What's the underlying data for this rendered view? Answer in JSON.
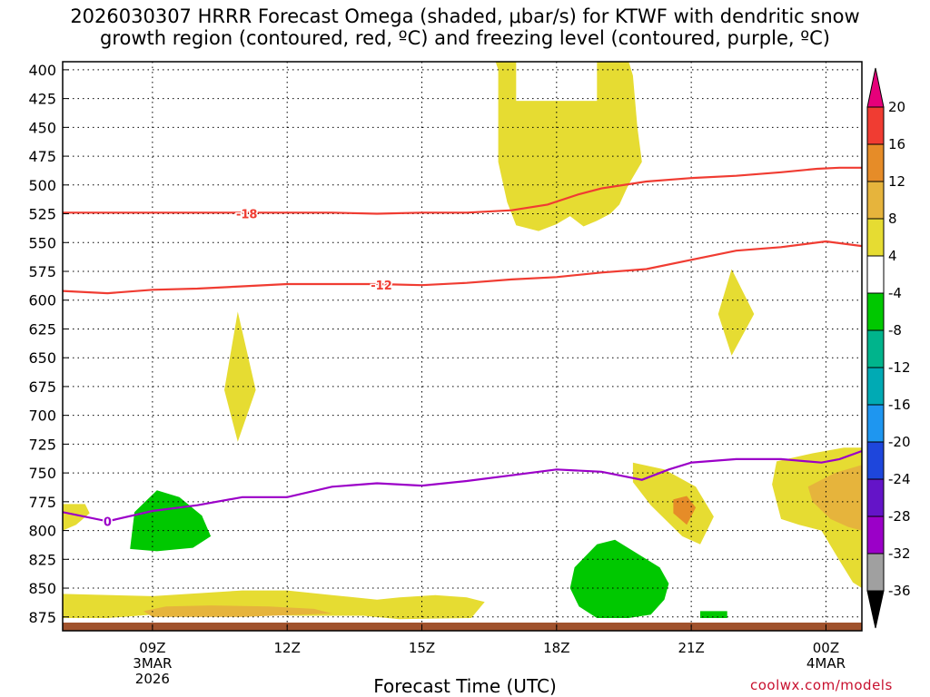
{
  "title_line1": "2026030307 HRRR Forecast Omega (shaded, μbar/s) for KTWF with dendritic snow",
  "title_line2": "growth region (contoured, red, ºC) and freezing level (contoured, purple, ºC)",
  "credit": "coolwx.com/models",
  "colors": {
    "yellow": "#e6dc32",
    "dark_yellow": "#e6b43c",
    "orange": "#e68c28",
    "green": "#00c800",
    "red_contour": "#f03c32",
    "purple_contour": "#9b00c8",
    "ground": "#a0522d"
  },
  "chart_data": {
    "type": "heatmap",
    "xlabel": "Forecast Time (UTC)",
    "xlim": [
      7,
      24.8
    ],
    "ylim": [
      393,
      887
    ],
    "x_ticks": [
      {
        "x": 9,
        "label": "09Z",
        "sub1": "3MAR",
        "sub2": "2026"
      },
      {
        "x": 12,
        "label": "12Z",
        "sub1": "",
        "sub2": ""
      },
      {
        "x": 15,
        "label": "15Z",
        "sub1": "",
        "sub2": ""
      },
      {
        "x": 18,
        "label": "18Z",
        "sub1": "",
        "sub2": ""
      },
      {
        "x": 21,
        "label": "21Z",
        "sub1": "",
        "sub2": ""
      },
      {
        "x": 24,
        "label": "00Z",
        "sub1": "4MAR",
        "sub2": ""
      }
    ],
    "y_ticks": [
      400,
      425,
      450,
      475,
      500,
      525,
      550,
      575,
      600,
      625,
      650,
      675,
      700,
      725,
      750,
      775,
      800,
      825,
      850,
      875
    ],
    "grid": true,
    "colorbar": {
      "labels": [
        "20",
        "16",
        "12",
        "8",
        "4",
        "-4",
        "-8",
        "-12",
        "-16",
        "-20",
        "-24",
        "-28",
        "-32",
        "-36"
      ],
      "colors": [
        "#f03c32",
        "#e68c28",
        "#e6b43c",
        "#e6dc32",
        "#ffffff",
        "#00c800",
        "#00b48c",
        "#00aab4",
        "#1e96f0",
        "#1e46dc",
        "#6414c8",
        "#9b00c8",
        "#a0a0a0"
      ],
      "top_arrow_color": "#e6007a",
      "bottom_arrow_color": "#000000"
    },
    "contours": [
      {
        "label": "-18",
        "color": "#f03c32",
        "label_at": [
          11.1,
          525
        ],
        "points": [
          [
            7,
            524
          ],
          [
            8,
            524
          ],
          [
            9,
            524
          ],
          [
            10,
            524
          ],
          [
            11,
            524
          ],
          [
            12,
            524
          ],
          [
            13,
            524
          ],
          [
            14,
            525
          ],
          [
            15,
            524
          ],
          [
            16,
            524
          ],
          [
            17,
            522
          ],
          [
            17.8,
            517
          ],
          [
            18.5,
            508
          ],
          [
            19,
            503
          ],
          [
            20,
            497
          ],
          [
            21,
            494
          ],
          [
            22,
            492
          ],
          [
            23,
            489
          ],
          [
            23.8,
            486
          ],
          [
            24.3,
            485
          ],
          [
            24.8,
            485
          ]
        ]
      },
      {
        "label": "-12",
        "color": "#f03c32",
        "label_at": [
          14.1,
          587
        ],
        "points": [
          [
            7,
            592
          ],
          [
            8,
            594
          ],
          [
            9,
            591
          ],
          [
            10,
            590
          ],
          [
            11,
            588
          ],
          [
            12,
            586
          ],
          [
            13,
            586
          ],
          [
            14,
            586
          ],
          [
            15,
            587
          ],
          [
            16,
            585
          ],
          [
            17,
            582
          ],
          [
            18,
            580
          ],
          [
            19,
            576
          ],
          [
            20,
            573
          ],
          [
            21,
            565
          ],
          [
            22,
            557
          ],
          [
            23,
            554
          ],
          [
            24,
            549
          ],
          [
            24.8,
            553
          ]
        ]
      },
      {
        "label": "0",
        "color": "#9b00c8",
        "label_at": [
          8.0,
          792
        ],
        "points": [
          [
            7,
            784
          ],
          [
            8,
            792
          ],
          [
            9,
            783
          ],
          [
            10,
            778
          ],
          [
            11,
            771
          ],
          [
            12,
            771
          ],
          [
            13,
            762
          ],
          [
            14,
            759
          ],
          [
            15,
            761
          ],
          [
            16,
            757
          ],
          [
            17,
            752
          ],
          [
            18,
            747
          ],
          [
            19,
            749
          ],
          [
            19.9,
            756
          ],
          [
            20.5,
            747
          ],
          [
            21,
            741
          ],
          [
            22,
            738
          ],
          [
            23,
            738
          ],
          [
            23.9,
            741
          ],
          [
            24.3,
            738
          ],
          [
            24.8,
            731
          ]
        ]
      }
    ],
    "regions": [
      {
        "value": 4,
        "color": "#e6dc32",
        "points": [
          [
            16.6,
            388
          ],
          [
            19.5,
            388
          ],
          [
            19.6,
            392
          ],
          [
            19.7,
            405
          ],
          [
            19.8,
            450
          ],
          [
            19.9,
            480
          ],
          [
            19.6,
            500
          ],
          [
            19.4,
            517
          ],
          [
            19.2,
            525
          ],
          [
            18.9,
            531
          ],
          [
            18.6,
            536
          ],
          [
            18.3,
            527
          ],
          [
            18,
            534
          ],
          [
            17.6,
            540
          ],
          [
            17.1,
            535
          ],
          [
            16.9,
            515
          ],
          [
            16.7,
            480
          ],
          [
            16.7,
            440
          ],
          [
            16.7,
            400
          ]
        ]
      },
      {
        "value": 4,
        "color": "#e6dc32",
        "points": [
          [
            10.9,
            610
          ],
          [
            11.3,
            678
          ],
          [
            10.9,
            723
          ],
          [
            10.6,
            678
          ]
        ]
      },
      {
        "value": 4,
        "color": "#e6dc32",
        "points": [
          [
            21.9,
            573
          ],
          [
            22.4,
            612
          ],
          [
            21.9,
            648
          ],
          [
            21.6,
            612
          ]
        ]
      },
      {
        "value": 4,
        "color": "#e6dc32",
        "points": [
          [
            19.7,
            741
          ],
          [
            20.4,
            747
          ],
          [
            21.1,
            762
          ],
          [
            21.5,
            788
          ],
          [
            21.2,
            812
          ],
          [
            20.8,
            805
          ],
          [
            20.1,
            778
          ],
          [
            19.7,
            758
          ]
        ]
      },
      {
        "value": 4,
        "color": "#e6dc32",
        "points": [
          [
            22.9,
            740
          ],
          [
            23.7,
            733
          ],
          [
            24.4,
            728
          ],
          [
            24.8,
            728
          ],
          [
            24.8,
            850
          ],
          [
            24.6,
            845
          ],
          [
            24.3,
            826
          ],
          [
            23.9,
            800
          ],
          [
            23.4,
            795
          ],
          [
            23,
            790
          ],
          [
            22.8,
            760
          ]
        ]
      },
      {
        "value": 8,
        "color": "#e6b43c",
        "points": [
          [
            23.6,
            762
          ],
          [
            24.2,
            750
          ],
          [
            24.8,
            743
          ],
          [
            24.8,
            800
          ],
          [
            24.5,
            797
          ],
          [
            24.1,
            790
          ],
          [
            23.7,
            775
          ]
        ]
      },
      {
        "value": 12,
        "color": "#e68c28",
        "points": [
          [
            20.6,
            773
          ],
          [
            20.9,
            770
          ],
          [
            21.1,
            780
          ],
          [
            20.9,
            795
          ],
          [
            20.6,
            785
          ]
        ]
      },
      {
        "value": 4,
        "color": "#e6dc32",
        "points": [
          [
            7,
            855
          ],
          [
            9,
            857
          ],
          [
            11,
            852
          ],
          [
            12,
            852
          ],
          [
            13,
            856
          ],
          [
            14,
            860
          ],
          [
            14.5,
            858
          ],
          [
            15.3,
            856
          ],
          [
            16,
            858
          ],
          [
            16.4,
            862
          ],
          [
            16.1,
            876
          ],
          [
            14.5,
            877
          ],
          [
            13.7,
            874
          ],
          [
            12.3,
            874
          ],
          [
            11,
            873
          ],
          [
            9,
            873
          ],
          [
            8,
            876
          ],
          [
            7,
            876
          ]
        ]
      },
      {
        "value": 8,
        "color": "#e6b43c",
        "points": [
          [
            8.8,
            870
          ],
          [
            9.3,
            866
          ],
          [
            10.3,
            865
          ],
          [
            11.6,
            866
          ],
          [
            12.6,
            868
          ],
          [
            13,
            872
          ],
          [
            11,
            875
          ],
          [
            9,
            875
          ]
        ]
      },
      {
        "value": 4,
        "color": "#e6dc32",
        "points": [
          [
            7,
            777
          ],
          [
            7.5,
            777
          ],
          [
            7.6,
            785
          ],
          [
            7.3,
            795
          ],
          [
            7,
            800
          ]
        ]
      },
      {
        "value": -4,
        "color": "#00c800",
        "points": [
          [
            8.6,
            784
          ],
          [
            9.1,
            765
          ],
          [
            9.6,
            771
          ],
          [
            10.1,
            787
          ],
          [
            10.3,
            805
          ],
          [
            9.9,
            815
          ],
          [
            9.1,
            818
          ],
          [
            8.5,
            816
          ]
        ]
      },
      {
        "value": -4,
        "color": "#00c800",
        "points": [
          [
            18.4,
            832
          ],
          [
            18.9,
            812
          ],
          [
            19.3,
            808
          ],
          [
            19.8,
            820
          ],
          [
            20.3,
            832
          ],
          [
            20.5,
            846
          ],
          [
            20.4,
            860
          ],
          [
            20.1,
            873
          ],
          [
            19.6,
            876
          ],
          [
            18.9,
            876
          ],
          [
            18.5,
            866
          ],
          [
            18.3,
            850
          ]
        ]
      },
      {
        "value": -4,
        "color": "#00c800",
        "points": [
          [
            21.2,
            870
          ],
          [
            21.8,
            870
          ],
          [
            21.8,
            876
          ],
          [
            21.2,
            876
          ]
        ]
      }
    ]
  }
}
